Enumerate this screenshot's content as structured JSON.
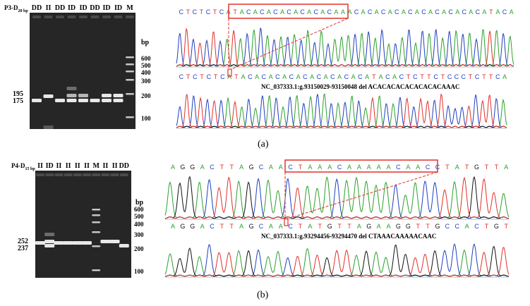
{
  "panel_a": {
    "label": "(a)",
    "gel_title": "P3-D",
    "gel_title_sub": "20 bp",
    "lanes": [
      "DD",
      "II",
      "DD",
      "ID",
      "ID",
      "DD",
      "ID",
      "ID",
      "M"
    ],
    "bp_unit": "bp",
    "ladder_labels": [
      "600",
      "500",
      "400",
      "300",
      "200",
      "100"
    ],
    "left_labels": [
      "195",
      "175"
    ],
    "seq_top": "CTCTCTCATACACACACACACACAAACACACACACACACACACACATACA",
    "seq_bottom": "CTCTCTCATACACACACACACACACACATACACTCTTCTCCCTCTTCA",
    "caption": "NC_037333.1:g.93150029-93150048 del ACACACACACACACACAAAC"
  },
  "panel_b": {
    "label": "(b)",
    "gel_title": "P4-D",
    "gel_title_sub": "15 bp",
    "lanes": [
      "II",
      "ID",
      "II",
      "II",
      "II",
      "II",
      "M",
      "II",
      "II",
      "DD"
    ],
    "bp_unit": "bp",
    "ladder_labels": [
      "600",
      "500",
      "400",
      "300",
      "200",
      "100"
    ],
    "left_labels": [
      "252",
      "237"
    ],
    "seq_top": "AGGACTTAGCAACTAAACAAAAACAACCTATGTTA",
    "seq_bottom": "AGGACTTAGCAACTATGTTAGAAGGTTGCCACTGT",
    "caption": "NC_037333.1:g.93294456-93294470 del CTAAACAAAAACAAC"
  },
  "colors": {
    "A": "#2ca02c",
    "C": "#1f3fbf",
    "G": "#111111",
    "T": "#e0302a",
    "highlight": "#e0302a"
  }
}
